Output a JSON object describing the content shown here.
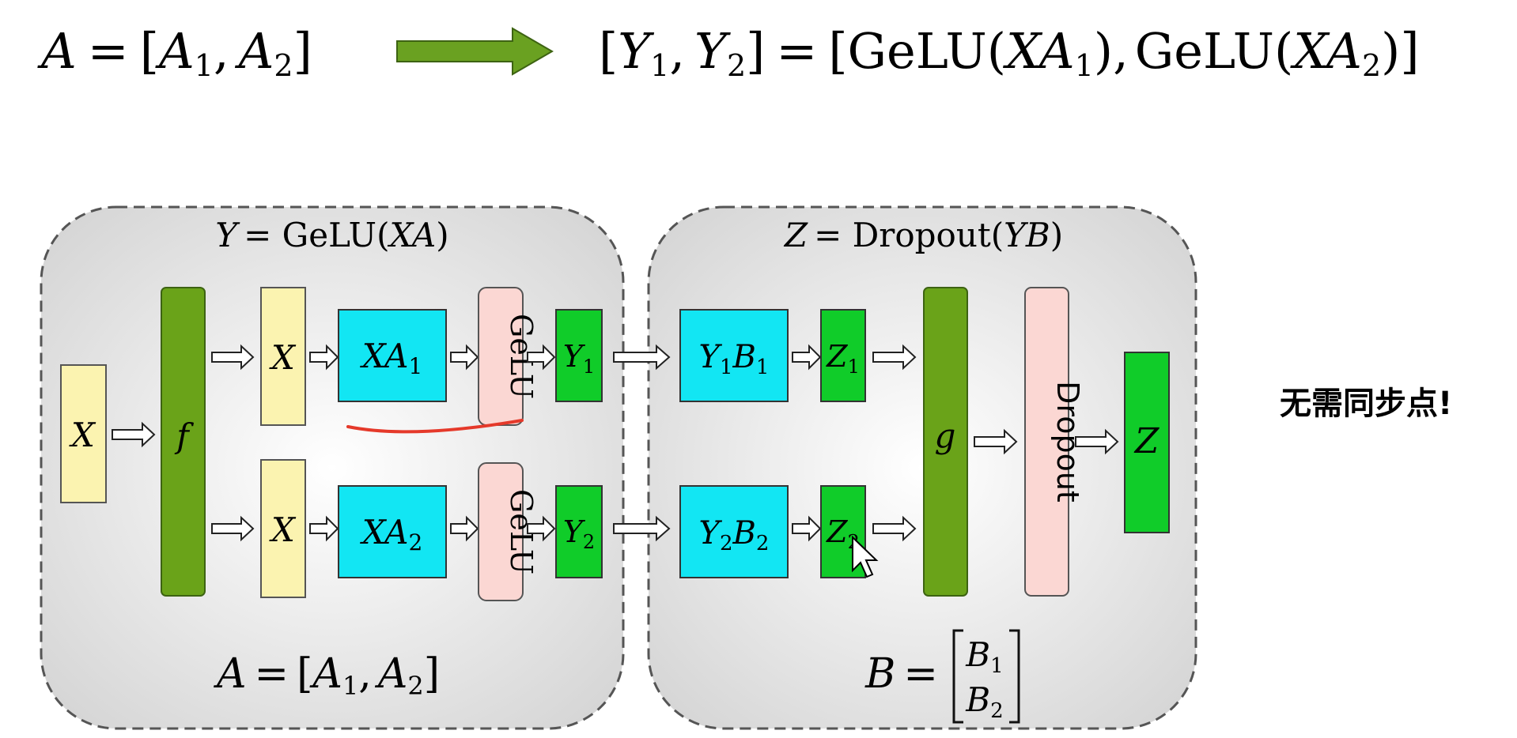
{
  "top_equation": {
    "left": {
      "A": "A",
      "eq": "=",
      "open": "[",
      "A1": "A",
      "sub1": "1",
      "comma": ",",
      "A2": "A",
      "sub2": "2",
      "close": "]"
    },
    "right": {
      "open": "[",
      "Y1": "Y",
      "sub1": "1",
      "comma": ",",
      "Y2": "Y",
      "sub2": "2",
      "close": "]",
      "eq": "=",
      "open2": "[",
      "gelu1": "GeLU(",
      "XA1": "XA",
      "s1": "1",
      "close_paren1": "),",
      "gelu2": "GeLU(",
      "XA2": "XA",
      "s2": "2",
      "close_paren2": ")",
      "close2": "]"
    }
  },
  "left_panel": {
    "title_var": "Y",
    "title_rest": "= GeLU(",
    "title_arg": "XA",
    "title_close": ")",
    "input_label": "X",
    "f_label": "f",
    "rows": [
      {
        "x_label": "X",
        "xa_main": "XA",
        "xa_sub": "1",
        "gelu": "GeLU",
        "y_main": "Y",
        "y_sub": "1"
      },
      {
        "x_label": "X",
        "xa_main": "XA",
        "xa_sub": "2",
        "gelu": "GeLU",
        "y_main": "Y",
        "y_sub": "2"
      }
    ],
    "footer": {
      "A": "A",
      "eq": "=",
      "open": "[",
      "A1": "A",
      "sub1": "1",
      "comma": ",",
      "A2": "A",
      "sub2": "2",
      "close": "]"
    }
  },
  "right_panel": {
    "title_var": "Z",
    "title_rest": "= Dropout(",
    "title_arg": "YB",
    "title_close": ")",
    "rows": [
      {
        "yb_y": "Y",
        "yb_ysub": "1",
        "yb_b": "B",
        "yb_bsub": "1",
        "z_main": "Z",
        "z_sub": "1"
      },
      {
        "yb_y": "Y",
        "yb_ysub": "2",
        "yb_b": "B",
        "yb_bsub": "2",
        "z_main": "Z",
        "z_sub": "2"
      }
    ],
    "g_label": "g",
    "dropout_label": "Dropout",
    "output_label": "Z",
    "footer": {
      "B": "B",
      "eq": "=",
      "B1": "B",
      "sub1": "1",
      "B2": "B",
      "sub2": "2"
    }
  },
  "note": "无需同步点!",
  "colors": {
    "arrow_green": "#6aa121",
    "yellow_box": "#fbf3b0",
    "dark_green": "#6aa319",
    "cyan_box": "#12e6f3",
    "pink_box": "#fbd7d3",
    "bright_green": "#10cc29",
    "panel_gray": "#e7e7e7",
    "underline_red": "#e5392a"
  }
}
